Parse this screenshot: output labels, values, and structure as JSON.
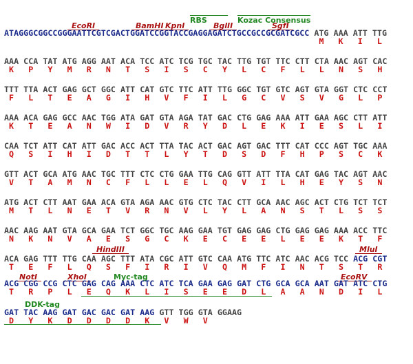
{
  "sequence": {
    "leader": "ATAGGGCGGCCGGGAATTCGTCGACTGGATCCGGTACCGAGGAGATCTGCCGCCGCGATCGCC",
    "rows": [
      {
        "codons": [
          "ATG",
          "AAA",
          "ATT",
          "TTG"
        ],
        "amino_acids": [
          "M",
          "K",
          "I",
          "L"
        ]
      },
      {
        "codons": [
          "AAA",
          "CCA",
          "TAT",
          "ATG",
          "AGG",
          "AAT",
          "ACA",
          "TCC",
          "ATC",
          "TCG",
          "TGC",
          "TAC",
          "TTG",
          "TGT",
          "TTC",
          "CTT",
          "CTA",
          "AAC",
          "AGT",
          "CAC"
        ],
        "amino_acids": [
          "K",
          "P",
          "Y",
          "M",
          "R",
          "N",
          "T",
          "S",
          "I",
          "S",
          "C",
          "Y",
          "L",
          "C",
          "F",
          "L",
          "L",
          "N",
          "S",
          "H"
        ]
      },
      {
        "codons": [
          "TTT",
          "TTA",
          "ACT",
          "GAG",
          "GCT",
          "GGC",
          "ATT",
          "CAT",
          "GTC",
          "TTC",
          "ATT",
          "TTG",
          "GGC",
          "TGT",
          "GTC",
          "AGT",
          "GTA",
          "GGT",
          "CTC",
          "CCT"
        ],
        "amino_acids": [
          "F",
          "L",
          "T",
          "E",
          "A",
          "G",
          "I",
          "H",
          "V",
          "F",
          "I",
          "L",
          "G",
          "C",
          "V",
          "S",
          "V",
          "G",
          "L",
          "P"
        ]
      },
      {
        "codons": [
          "AAA",
          "ACA",
          "GAG",
          "GCC",
          "AAC",
          "TGG",
          "ATA",
          "GAT",
          "GTA",
          "AGA",
          "TAT",
          "GAC",
          "CTG",
          "GAG",
          "AAA",
          "ATT",
          "GAA",
          "AGC",
          "CTT",
          "ATT"
        ],
        "amino_acids": [
          "K",
          "T",
          "E",
          "A",
          "N",
          "W",
          "I",
          "D",
          "V",
          "R",
          "Y",
          "D",
          "L",
          "E",
          "K",
          "I",
          "E",
          "S",
          "L",
          "I"
        ]
      },
      {
        "codons": [
          "CAA",
          "TCT",
          "ATT",
          "CAT",
          "ATT",
          "GAC",
          "ACC",
          "ACT",
          "TTA",
          "TAC",
          "ACT",
          "GAC",
          "AGT",
          "GAC",
          "TTT",
          "CAT",
          "CCC",
          "AGT",
          "TGC",
          "AAA"
        ],
        "amino_acids": [
          "Q",
          "S",
          "I",
          "H",
          "I",
          "D",
          "T",
          "T",
          "L",
          "Y",
          "T",
          "D",
          "S",
          "D",
          "F",
          "H",
          "P",
          "S",
          "C",
          "K"
        ]
      },
      {
        "codons": [
          "GTT",
          "ACT",
          "GCA",
          "ATG",
          "AAC",
          "TGC",
          "TTT",
          "CTC",
          "CTG",
          "GAA",
          "TTG",
          "CAG",
          "GTT",
          "ATT",
          "TTA",
          "CAT",
          "GAG",
          "TAC",
          "AGT",
          "AAC"
        ],
        "amino_acids": [
          "V",
          "T",
          "A",
          "M",
          "N",
          "C",
          "F",
          "L",
          "L",
          "E",
          "L",
          "Q",
          "V",
          "I",
          "L",
          "H",
          "E",
          "Y",
          "S",
          "N"
        ]
      },
      {
        "codons": [
          "ATG",
          "ACT",
          "CTT",
          "AAT",
          "GAA",
          "ACA",
          "GTA",
          "AGA",
          "AAC",
          "GTG",
          "CTC",
          "TAC",
          "CTT",
          "GCA",
          "AAC",
          "AGC",
          "ACT",
          "CTG",
          "TCT",
          "TCT"
        ],
        "amino_acids": [
          "M",
          "T",
          "L",
          "N",
          "E",
          "T",
          "V",
          "R",
          "N",
          "V",
          "L",
          "Y",
          "L",
          "A",
          "N",
          "S",
          "T",
          "L",
          "S",
          "S"
        ]
      },
      {
        "codons": [
          "AAC",
          "AAG",
          "AAT",
          "GTA",
          "GCA",
          "GAA",
          "TCT",
          "GGC",
          "TGC",
          "AAG",
          "GAA",
          "TGT",
          "GAG",
          "GAG",
          "CTG",
          "GAG",
          "GAG",
          "AAA",
          "ACC",
          "TTC"
        ],
        "amino_acids": [
          "N",
          "K",
          "N",
          "V",
          "A",
          "E",
          "S",
          "G",
          "C",
          "K",
          "E",
          "C",
          "E",
          "E",
          "L",
          "E",
          "E",
          "K",
          "T",
          "F"
        ]
      },
      {
        "codons": [
          "ACA",
          "GAG",
          "TTT",
          "TTG",
          "CAA",
          "AGC",
          "TTT",
          "ATA",
          "CGC",
          "ATT",
          "GTC",
          "CAA",
          "ATG",
          "TTC",
          "ATC",
          "AAC",
          "ACG",
          "TCC",
          "ACG",
          "CGT"
        ],
        "amino_acids": [
          "T",
          "E",
          "F",
          "L",
          "Q",
          "S",
          "F",
          "I",
          "R",
          "I",
          "V",
          "Q",
          "M",
          "F",
          "I",
          "N",
          "T",
          "S",
          "T",
          "R"
        ]
      },
      {
        "codons": [
          "ACG",
          "CGG",
          "CCG",
          "CTC",
          "GAG",
          "CAG",
          "AAA",
          "CTC",
          "ATC",
          "TCA",
          "GAA",
          "GAG",
          "GAT",
          "CTG",
          "GCA",
          "GCA",
          "AAT",
          "GAT",
          "ATC",
          "CTG"
        ],
        "amino_acids": [
          "T",
          "R",
          "P",
          "L",
          "E",
          "Q",
          "K",
          "L",
          "I",
          "S",
          "E",
          "E",
          "D",
          "L",
          "A",
          "A",
          "N",
          "D",
          "I",
          "L"
        ]
      },
      {
        "codons": [
          "GAT",
          "TAC",
          "AAG",
          "GAT",
          "GAC",
          "GAC",
          "GAT",
          "AAG",
          "GTT",
          "TGG",
          "GTA",
          "GGAAG"
        ],
        "amino_acids": [
          "D",
          "Y",
          "K",
          "D",
          "D",
          "D",
          "D",
          "K",
          "V",
          "W",
          "V"
        ]
      }
    ]
  },
  "annotations": {
    "rbs": "RBS",
    "kozac": "Kozac Consensus",
    "ecori": "EcoRI",
    "bamhi": "BamHI",
    "kpni": "KpnI",
    "bglii": "BglII",
    "sgfi": "SgfI",
    "hindiii": "HindIII",
    "mlui": "MluI",
    "noti": "NotI",
    "xhoi": "XhoI",
    "myc": "Myc-tag",
    "ecorv": "EcoRV",
    "ddk": "DDK-tag"
  }
}
